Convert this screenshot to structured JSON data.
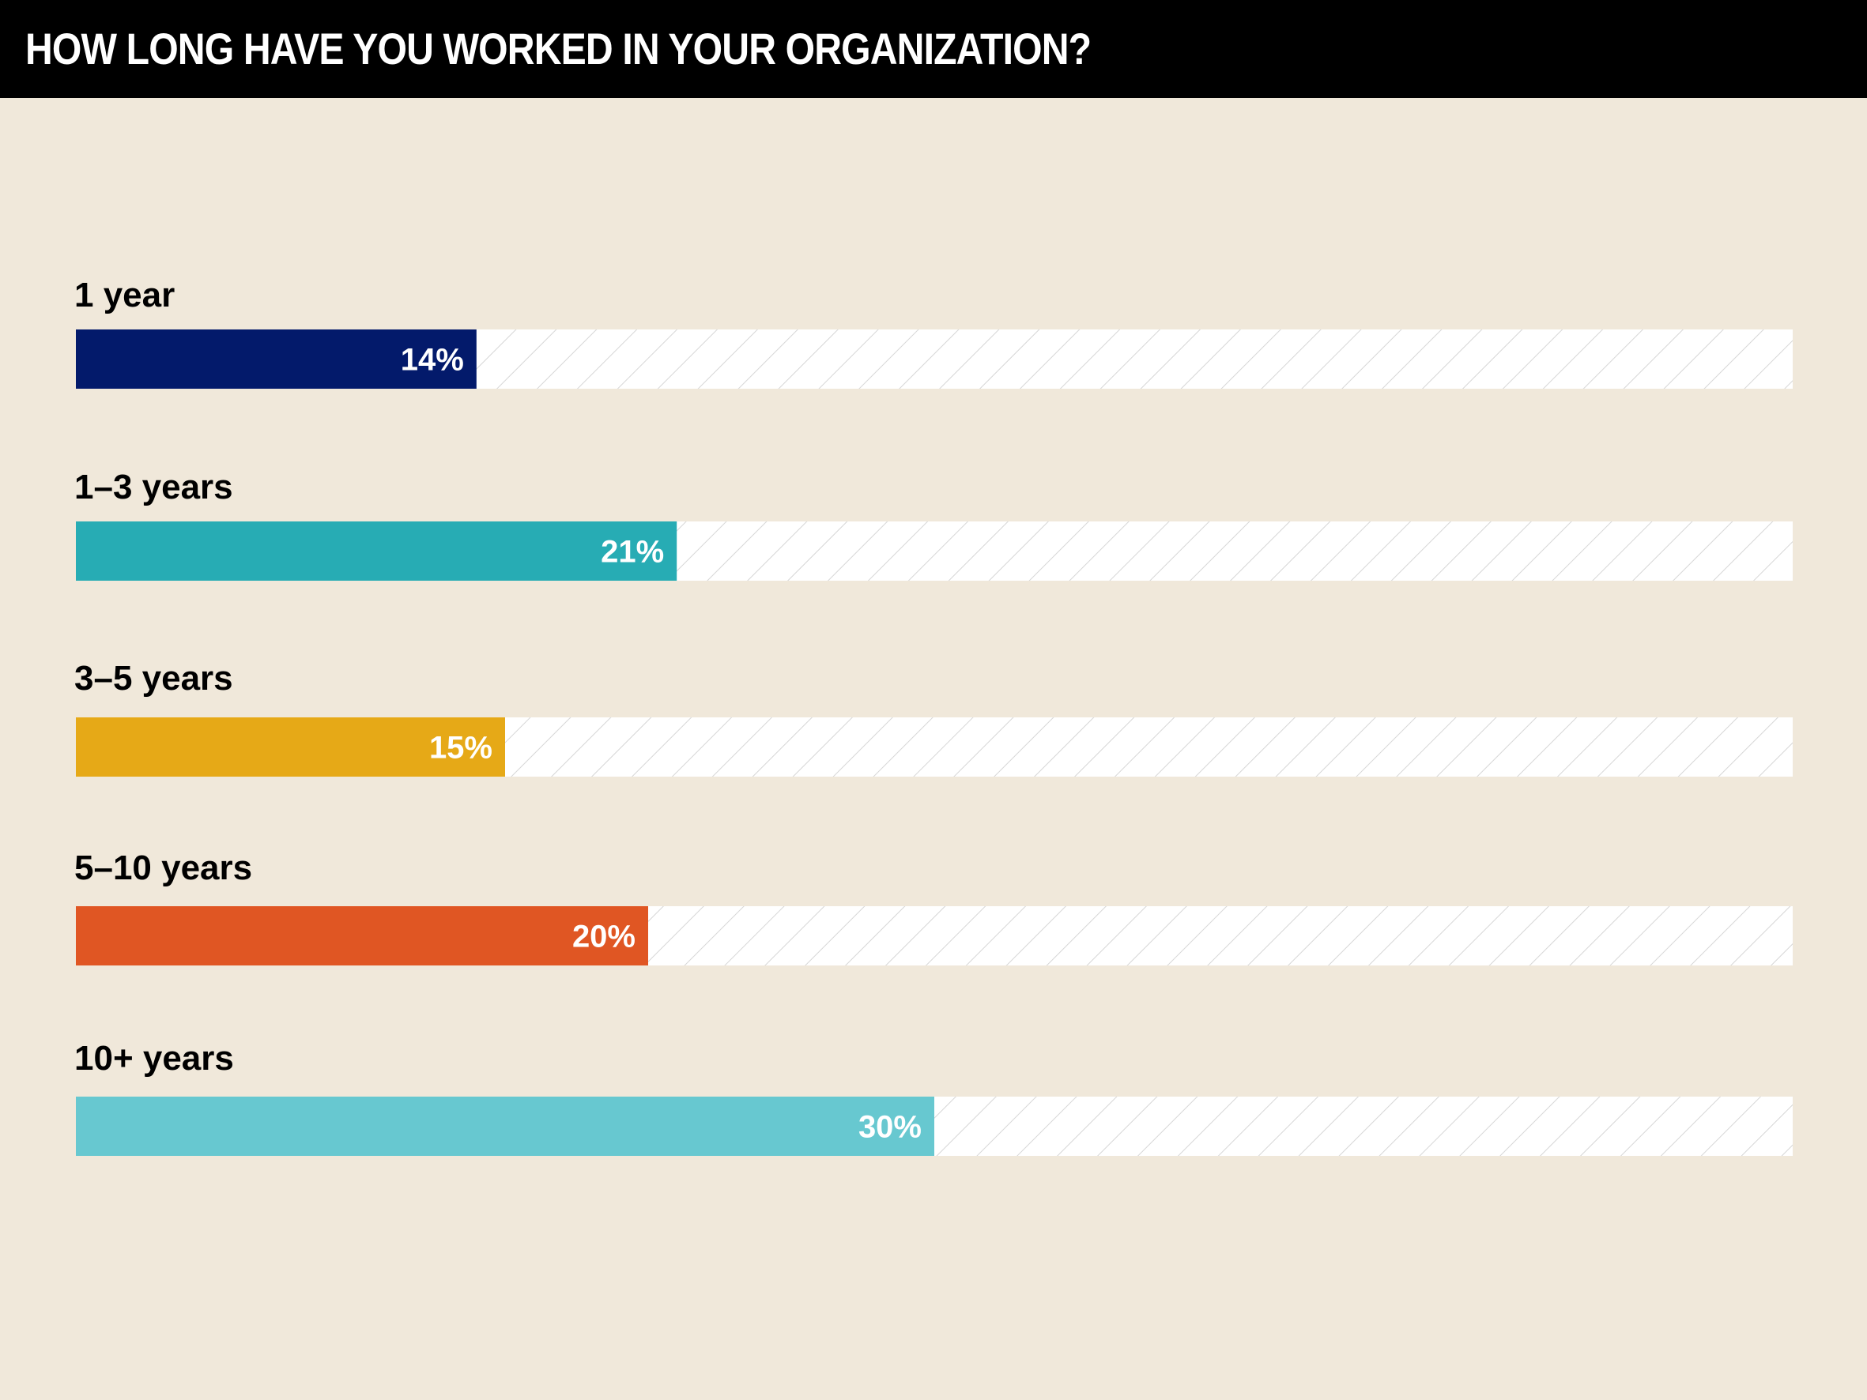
{
  "chart_data": {
    "type": "bar",
    "orientation": "horizontal",
    "title": "HOW LONG HAVE YOU WORKED IN YOUR ORGANIZATION?",
    "categories": [
      "1 year",
      "1–3 years",
      "3–5 years",
      "5–10 years",
      "10+ years"
    ],
    "values": [
      14,
      21,
      15,
      20,
      30
    ],
    "value_labels": [
      "14%",
      "21%",
      "15%",
      "20%",
      "30%"
    ],
    "colors": [
      "#031a6b",
      "#27acb4",
      "#e6a917",
      "#e05623",
      "#67c8d0"
    ],
    "xlim": [
      0,
      60
    ],
    "unit": "%"
  }
}
